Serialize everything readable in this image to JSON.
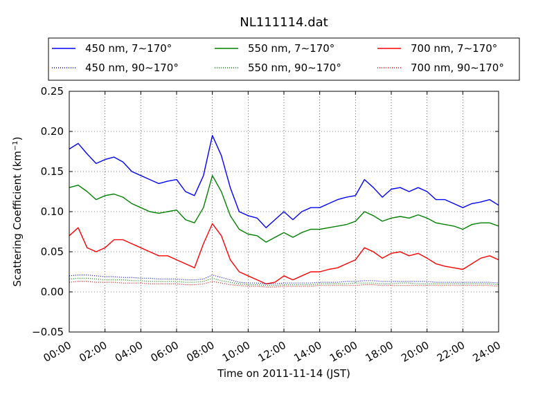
{
  "chart_data": {
    "type": "line",
    "title": "NL111114.dat",
    "xlabel": "Time on 2011-11-14 (JST)",
    "ylabel_main": "Scattering Coefficient (km",
    "ylabel_sup": "−1",
    "ylabel_end": ")",
    "xlim": [
      0,
      24
    ],
    "ylim": [
      -0.05,
      0.25
    ],
    "x_ticks": [
      0,
      2,
      4,
      6,
      8,
      10,
      12,
      14,
      16,
      18,
      20,
      22,
      24
    ],
    "x_tick_labels": [
      "00:00",
      "02:00",
      "04:00",
      "06:00",
      "08:00",
      "10:00",
      "12:00",
      "14:00",
      "16:00",
      "18:00",
      "20:00",
      "22:00",
      "24:00"
    ],
    "y_ticks": [
      -0.05,
      0.0,
      0.05,
      0.1,
      0.15,
      0.2,
      0.25
    ],
    "y_tick_labels": [
      "−0.05",
      "0.00",
      "0.05",
      "0.10",
      "0.15",
      "0.20",
      "0.25"
    ],
    "grid": true,
    "legend": {
      "placement": "top",
      "columns": 3
    },
    "x": [
      0,
      0.5,
      1,
      1.5,
      2,
      2.5,
      3,
      3.5,
      4,
      4.5,
      5,
      5.5,
      6,
      6.5,
      7,
      7.5,
      8,
      8.5,
      9,
      9.5,
      10,
      10.5,
      11,
      11.5,
      12,
      12.5,
      13,
      13.5,
      14,
      14.5,
      15,
      15.5,
      16,
      16.5,
      17,
      17.5,
      18,
      18.5,
      19,
      19.5,
      20,
      20.5,
      21,
      21.5,
      22,
      22.5,
      23,
      23.5,
      24
    ],
    "series": [
      {
        "name": "450 nm, 7∼170°",
        "color": "#0000ff",
        "style": "solid",
        "values": [
          0.178,
          0.185,
          0.172,
          0.16,
          0.165,
          0.168,
          0.162,
          0.15,
          0.145,
          0.14,
          0.135,
          0.138,
          0.14,
          0.125,
          0.12,
          0.145,
          0.195,
          0.17,
          0.13,
          0.1,
          0.095,
          0.092,
          0.08,
          0.09,
          0.1,
          0.09,
          0.1,
          0.105,
          0.105,
          0.11,
          0.115,
          0.118,
          0.12,
          0.14,
          0.13,
          0.118,
          0.128,
          0.13,
          0.125,
          0.13,
          0.125,
          0.115,
          0.115,
          0.11,
          0.105,
          0.11,
          0.112,
          0.115,
          0.108
        ]
      },
      {
        "name": "550 nm, 7∼170°",
        "color": "#008000",
        "style": "solid",
        "values": [
          0.13,
          0.133,
          0.125,
          0.115,
          0.12,
          0.122,
          0.118,
          0.11,
          0.105,
          0.1,
          0.098,
          0.1,
          0.102,
          0.09,
          0.086,
          0.105,
          0.145,
          0.125,
          0.095,
          0.078,
          0.072,
          0.07,
          0.062,
          0.068,
          0.074,
          0.068,
          0.074,
          0.078,
          0.078,
          0.08,
          0.082,
          0.084,
          0.088,
          0.1,
          0.095,
          0.088,
          0.092,
          0.094,
          0.092,
          0.096,
          0.092,
          0.086,
          0.084,
          0.082,
          0.078,
          0.084,
          0.086,
          0.086,
          0.082
        ]
      },
      {
        "name": "700 nm, 7∼170°",
        "color": "#ff0000",
        "style": "solid",
        "values": [
          0.07,
          0.08,
          0.055,
          0.05,
          0.055,
          0.065,
          0.065,
          0.06,
          0.055,
          0.05,
          0.045,
          0.045,
          0.04,
          0.035,
          0.03,
          0.06,
          0.085,
          0.07,
          0.04,
          0.025,
          0.02,
          0.015,
          0.01,
          0.012,
          0.02,
          0.015,
          0.02,
          0.025,
          0.025,
          0.028,
          0.03,
          0.035,
          0.04,
          0.055,
          0.05,
          0.042,
          0.048,
          0.05,
          0.045,
          0.048,
          0.042,
          0.035,
          0.032,
          0.03,
          0.028,
          0.035,
          0.042,
          0.045,
          0.04
        ]
      },
      {
        "name": "450 nm, 90∼170°",
        "color": "#0000ff",
        "style": "dotted",
        "values": [
          0.02,
          0.021,
          0.021,
          0.02,
          0.019,
          0.019,
          0.018,
          0.018,
          0.017,
          0.017,
          0.016,
          0.016,
          0.016,
          0.015,
          0.015,
          0.016,
          0.021,
          0.018,
          0.015,
          0.012,
          0.011,
          0.011,
          0.01,
          0.01,
          0.011,
          0.011,
          0.011,
          0.011,
          0.012,
          0.012,
          0.012,
          0.013,
          0.013,
          0.014,
          0.014,
          0.013,
          0.013,
          0.013,
          0.013,
          0.013,
          0.013,
          0.012,
          0.012,
          0.012,
          0.012,
          0.012,
          0.012,
          0.012,
          0.011
        ]
      },
      {
        "name": "550 nm, 90∼170°",
        "color": "#008000",
        "style": "dotted",
        "values": [
          0.016,
          0.017,
          0.017,
          0.016,
          0.015,
          0.015,
          0.015,
          0.014,
          0.014,
          0.013,
          0.013,
          0.013,
          0.013,
          0.012,
          0.012,
          0.013,
          0.017,
          0.014,
          0.012,
          0.01,
          0.009,
          0.009,
          0.008,
          0.008,
          0.009,
          0.009,
          0.009,
          0.009,
          0.01,
          0.01,
          0.01,
          0.01,
          0.011,
          0.011,
          0.011,
          0.01,
          0.01,
          0.011,
          0.011,
          0.01,
          0.01,
          0.01,
          0.01,
          0.01,
          0.01,
          0.01,
          0.01,
          0.01,
          0.009
        ]
      },
      {
        "name": "700 nm, 90∼170°",
        "color": "#ff0000",
        "style": "dotted",
        "values": [
          0.012,
          0.013,
          0.013,
          0.012,
          0.012,
          0.012,
          0.011,
          0.011,
          0.011,
          0.01,
          0.01,
          0.01,
          0.01,
          0.009,
          0.009,
          0.01,
          0.013,
          0.011,
          0.009,
          0.008,
          0.007,
          0.007,
          0.006,
          0.006,
          0.007,
          0.007,
          0.007,
          0.007,
          0.008,
          0.008,
          0.008,
          0.008,
          0.008,
          0.009,
          0.009,
          0.008,
          0.008,
          0.008,
          0.008,
          0.008,
          0.008,
          0.008,
          0.008,
          0.008,
          0.008,
          0.008,
          0.008,
          0.008,
          0.007
        ]
      }
    ]
  }
}
